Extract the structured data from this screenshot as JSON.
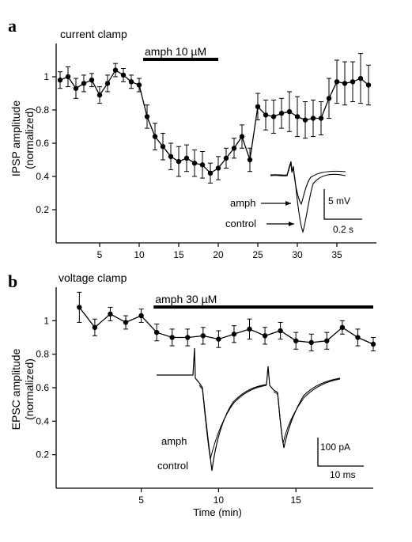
{
  "chart_data": [
    {
      "type": "line",
      "panel_label": "a",
      "mode_label": "current clamp",
      "ylabel": "IPSP amplitude",
      "ylabel2": "(normalized)",
      "xlabel": "",
      "xlim": [
        -0.5,
        40
      ],
      "ylim": [
        0,
        1.2
      ],
      "x_ticks": [
        5,
        10,
        15,
        20,
        25,
        30,
        35
      ],
      "y_ticks": [
        "0.2",
        "0.4",
        "0.6",
        "0.8",
        "1"
      ],
      "y_tick_values": [
        0.2,
        0.4,
        0.6,
        0.8,
        1.0
      ],
      "drug": {
        "label": "amph 10 µM",
        "start": 10.5,
        "end": 20
      },
      "x": [
        0,
        1,
        2,
        3,
        4,
        5,
        6,
        7,
        8,
        9,
        10,
        11,
        12,
        13,
        14,
        15,
        16,
        17,
        18,
        19,
        20,
        21,
        22,
        23,
        24,
        25,
        26,
        27,
        28,
        29,
        30,
        31,
        32,
        33,
        34,
        35,
        36,
        37,
        38,
        39
      ],
      "series": [
        {
          "values": [
            0.98,
            1.0,
            0.93,
            0.96,
            0.98,
            0.89,
            0.96,
            1.04,
            1.01,
            0.97,
            0.95,
            0.76,
            0.64,
            0.58,
            0.52,
            0.49,
            0.51,
            0.48,
            0.47,
            0.42,
            0.45,
            0.51,
            0.57,
            0.64,
            0.5,
            0.82,
            0.77,
            0.76,
            0.78,
            0.79,
            0.76,
            0.74,
            0.75,
            0.75,
            0.87,
            0.97,
            0.96,
            0.97,
            0.99,
            0.95
          ],
          "errors": [
            0.05,
            0.06,
            0.06,
            0.05,
            0.04,
            0.05,
            0.05,
            0.04,
            0.04,
            0.04,
            0.04,
            0.07,
            0.08,
            0.08,
            0.08,
            0.09,
            0.08,
            0.08,
            0.08,
            0.06,
            0.07,
            0.06,
            0.06,
            0.07,
            0.07,
            0.08,
            0.09,
            0.1,
            0.09,
            0.12,
            0.12,
            0.11,
            0.11,
            0.1,
            0.12,
            0.13,
            0.13,
            0.12,
            0.15,
            0.12
          ]
        }
      ],
      "inset": {
        "label_upper": "amph",
        "label_lower": "control",
        "scale_y_label": "5 mV",
        "scale_x_label": "0.2 s"
      }
    },
    {
      "type": "line",
      "panel_label": "b",
      "mode_label": "voltage clamp",
      "ylabel": "EPSC amplitude",
      "ylabel2": "(normalized)",
      "xlabel": "Time (min)",
      "xlim": [
        -0.5,
        20
      ],
      "ylim": [
        0,
        1.2
      ],
      "x_ticks": [
        5,
        10,
        15
      ],
      "y_ticks": [
        "0.2",
        "0.4",
        "0.6",
        "0.8",
        "1"
      ],
      "y_tick_values": [
        0.2,
        0.4,
        0.6,
        0.8,
        1.0
      ],
      "drug": {
        "label": "amph 30 µM",
        "start": 5.8,
        "end": 20
      },
      "x": [
        1,
        2,
        3,
        4,
        5,
        6,
        7,
        8,
        9,
        10,
        11,
        12,
        13,
        14,
        15,
        16,
        17,
        18,
        19,
        20
      ],
      "series": [
        {
          "values": [
            1.08,
            0.96,
            1.04,
            0.99,
            1.03,
            0.93,
            0.9,
            0.9,
            0.91,
            0.89,
            0.92,
            0.95,
            0.91,
            0.94,
            0.88,
            0.87,
            0.88,
            0.96,
            0.9,
            0.86
          ],
          "errors": [
            0.09,
            0.05,
            0.04,
            0.04,
            0.04,
            0.05,
            0.05,
            0.05,
            0.05,
            0.05,
            0.05,
            0.06,
            0.05,
            0.05,
            0.05,
            0.05,
            0.05,
            0.04,
            0.05,
            0.04
          ]
        }
      ],
      "inset": {
        "label_upper": "amph",
        "label_lower": "control",
        "scale_y_label": "100 pA",
        "scale_x_label": "10 ms"
      }
    }
  ]
}
